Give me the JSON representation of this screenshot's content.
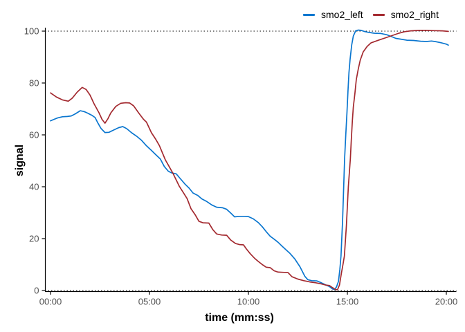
{
  "chart_data": {
    "type": "line",
    "title": "",
    "xlabel": "time (mm:ss)",
    "ylabel": "signal",
    "x_unit": "minutes",
    "xlim": [
      0,
      20.3
    ],
    "ylim": [
      0,
      100
    ],
    "grid": "off",
    "legend_position": "top-right",
    "x_ticks": [
      {
        "value": 0,
        "label": "00:00"
      },
      {
        "value": 5,
        "label": "05:00"
      },
      {
        "value": 10,
        "label": "10:00"
      },
      {
        "value": 15,
        "label": "15:00"
      },
      {
        "value": 20,
        "label": "20:00"
      }
    ],
    "y_ticks": [
      0,
      20,
      40,
      60,
      80,
      100
    ],
    "reference_lines": [
      {
        "y": 0,
        "style": "dotted",
        "color": "#000000"
      },
      {
        "y": 100,
        "style": "dotted",
        "color": "#000000"
      }
    ],
    "axis_text_color": "#4d4d4d",
    "axis_line_color": "#000000",
    "series": [
      {
        "name": "smo2_left",
        "color": "#0a76cf",
        "points": [
          [
            0,
            65.4
          ],
          [
            0.15,
            65.9
          ],
          [
            0.35,
            66.5
          ],
          [
            0.6,
            67.0
          ],
          [
            0.85,
            67.1
          ],
          [
            1.05,
            67.3
          ],
          [
            1.25,
            68.1
          ],
          [
            1.5,
            69.3
          ],
          [
            1.7,
            69.0
          ],
          [
            1.9,
            68.3
          ],
          [
            2.1,
            67.5
          ],
          [
            2.25,
            66.7
          ],
          [
            2.4,
            64.5
          ],
          [
            2.55,
            62.5
          ],
          [
            2.75,
            60.9
          ],
          [
            2.95,
            61.0
          ],
          [
            3.2,
            61.9
          ],
          [
            3.45,
            62.8
          ],
          [
            3.65,
            63.2
          ],
          [
            3.85,
            62.4
          ],
          [
            4.1,
            60.8
          ],
          [
            4.35,
            59.5
          ],
          [
            4.6,
            57.9
          ],
          [
            4.85,
            55.8
          ],
          [
            5.1,
            54.0
          ],
          [
            5.3,
            52.5
          ],
          [
            5.55,
            50.7
          ],
          [
            5.75,
            47.8
          ],
          [
            5.95,
            46.0
          ],
          [
            6.1,
            45.4
          ],
          [
            6.35,
            45.0
          ],
          [
            6.55,
            43.2
          ],
          [
            6.8,
            41.0
          ],
          [
            7.0,
            39.5
          ],
          [
            7.2,
            37.6
          ],
          [
            7.45,
            36.6
          ],
          [
            7.65,
            35.3
          ],
          [
            7.9,
            34.3
          ],
          [
            8.15,
            33.0
          ],
          [
            8.4,
            32.1
          ],
          [
            8.7,
            31.9
          ],
          [
            8.9,
            31.3
          ],
          [
            9.1,
            29.9
          ],
          [
            9.3,
            28.4
          ],
          [
            9.55,
            28.6
          ],
          [
            9.8,
            28.6
          ],
          [
            10.0,
            28.5
          ],
          [
            10.25,
            27.6
          ],
          [
            10.5,
            26.2
          ],
          [
            10.7,
            24.6
          ],
          [
            10.9,
            22.7
          ],
          [
            11.1,
            20.9
          ],
          [
            11.3,
            19.8
          ],
          [
            11.5,
            18.6
          ],
          [
            11.7,
            17.1
          ],
          [
            11.9,
            15.7
          ],
          [
            12.1,
            14.3
          ],
          [
            12.35,
            12.1
          ],
          [
            12.6,
            9.2
          ],
          [
            12.85,
            5.5
          ],
          [
            13.0,
            4.2
          ],
          [
            13.2,
            3.8
          ],
          [
            13.45,
            3.7
          ],
          [
            13.65,
            3.1
          ],
          [
            13.9,
            2.2
          ],
          [
            14.1,
            1.5
          ],
          [
            14.25,
            0.6
          ],
          [
            14.35,
            0.4
          ],
          [
            14.45,
            1.4
          ],
          [
            14.55,
            3.5
          ],
          [
            14.62,
            8.0
          ],
          [
            14.68,
            13.3
          ],
          [
            14.76,
            27.0
          ],
          [
            14.86,
            50.7
          ],
          [
            14.92,
            60.0
          ],
          [
            14.98,
            68.5
          ],
          [
            15.03,
            77.0
          ],
          [
            15.08,
            84.0
          ],
          [
            15.14,
            89.3
          ],
          [
            15.22,
            94.7
          ],
          [
            15.3,
            98.1
          ],
          [
            15.42,
            100.1
          ],
          [
            15.55,
            100.4
          ],
          [
            15.7,
            100.3
          ],
          [
            15.9,
            99.8
          ],
          [
            16.1,
            99.5
          ],
          [
            16.35,
            99.2
          ],
          [
            16.7,
            99.1
          ],
          [
            17.0,
            98.6
          ],
          [
            17.2,
            98.0
          ],
          [
            17.45,
            97.2
          ],
          [
            17.7,
            96.9
          ],
          [
            18.0,
            96.5
          ],
          [
            18.35,
            96.4
          ],
          [
            18.7,
            96.1
          ],
          [
            19.0,
            96.0
          ],
          [
            19.25,
            96.2
          ],
          [
            19.5,
            95.9
          ],
          [
            19.75,
            95.5
          ],
          [
            20.0,
            95.0
          ],
          [
            20.1,
            94.6
          ]
        ]
      },
      {
        "name": "smo2_right",
        "color": "#a3292f",
        "points": [
          [
            0,
            76.2
          ],
          [
            0.3,
            74.6
          ],
          [
            0.6,
            73.5
          ],
          [
            0.9,
            73.0
          ],
          [
            1.1,
            74.2
          ],
          [
            1.35,
            76.5
          ],
          [
            1.6,
            78.3
          ],
          [
            1.8,
            77.5
          ],
          [
            2.0,
            75.3
          ],
          [
            2.2,
            72.0
          ],
          [
            2.45,
            68.5
          ],
          [
            2.6,
            66.0
          ],
          [
            2.75,
            64.5
          ],
          [
            2.9,
            66.2
          ],
          [
            3.05,
            68.5
          ],
          [
            3.3,
            71.0
          ],
          [
            3.55,
            72.2
          ],
          [
            3.8,
            72.4
          ],
          [
            4.0,
            72.3
          ],
          [
            4.2,
            71.2
          ],
          [
            4.45,
            68.5
          ],
          [
            4.7,
            66.0
          ],
          [
            4.85,
            64.9
          ],
          [
            5.1,
            60.8
          ],
          [
            5.3,
            58.5
          ],
          [
            5.5,
            55.9
          ],
          [
            5.8,
            50.4
          ],
          [
            6.0,
            47.7
          ],
          [
            6.2,
            45.0
          ],
          [
            6.5,
            40.3
          ],
          [
            6.9,
            35.5
          ],
          [
            7.1,
            31.5
          ],
          [
            7.3,
            29.3
          ],
          [
            7.5,
            26.7
          ],
          [
            7.7,
            26.1
          ],
          [
            8.0,
            26.0
          ],
          [
            8.2,
            23.5
          ],
          [
            8.4,
            21.8
          ],
          [
            8.65,
            21.4
          ],
          [
            8.9,
            21.3
          ],
          [
            9.1,
            19.5
          ],
          [
            9.35,
            18.1
          ],
          [
            9.55,
            17.7
          ],
          [
            9.75,
            17.6
          ],
          [
            9.9,
            16.0
          ],
          [
            10.1,
            14.1
          ],
          [
            10.3,
            12.5
          ],
          [
            10.5,
            11.2
          ],
          [
            10.7,
            10.0
          ],
          [
            10.9,
            9.0
          ],
          [
            11.1,
            8.8
          ],
          [
            11.3,
            7.6
          ],
          [
            11.5,
            7.1
          ],
          [
            11.8,
            7.0
          ],
          [
            12.0,
            6.9
          ],
          [
            12.2,
            5.3
          ],
          [
            12.5,
            4.4
          ],
          [
            12.8,
            3.8
          ],
          [
            13.1,
            3.3
          ],
          [
            13.4,
            3.0
          ],
          [
            13.7,
            2.5
          ],
          [
            13.9,
            2.1
          ],
          [
            14.1,
            1.9
          ],
          [
            14.25,
            1.1
          ],
          [
            14.4,
            0.4
          ],
          [
            14.5,
            0.3
          ],
          [
            14.6,
            2.1
          ],
          [
            14.7,
            6.7
          ],
          [
            14.78,
            10.1
          ],
          [
            14.85,
            13.3
          ],
          [
            14.95,
            25.0
          ],
          [
            15.05,
            40.0
          ],
          [
            15.15,
            50.7
          ],
          [
            15.2,
            58.1
          ],
          [
            15.25,
            65.3
          ],
          [
            15.3,
            70.7
          ],
          [
            15.38,
            76.0
          ],
          [
            15.45,
            81.3
          ],
          [
            15.55,
            85.3
          ],
          [
            15.65,
            88.8
          ],
          [
            15.8,
            92.0
          ],
          [
            16.0,
            94.1
          ],
          [
            16.2,
            95.5
          ],
          [
            16.6,
            96.6
          ],
          [
            17.0,
            97.6
          ],
          [
            17.3,
            98.4
          ],
          [
            17.6,
            99.2
          ],
          [
            17.9,
            99.8
          ],
          [
            18.2,
            100.1
          ],
          [
            18.6,
            100.3
          ],
          [
            19.0,
            100.3
          ],
          [
            19.4,
            100.2
          ],
          [
            19.8,
            100.1
          ],
          [
            20.1,
            99.9
          ]
        ]
      }
    ]
  }
}
